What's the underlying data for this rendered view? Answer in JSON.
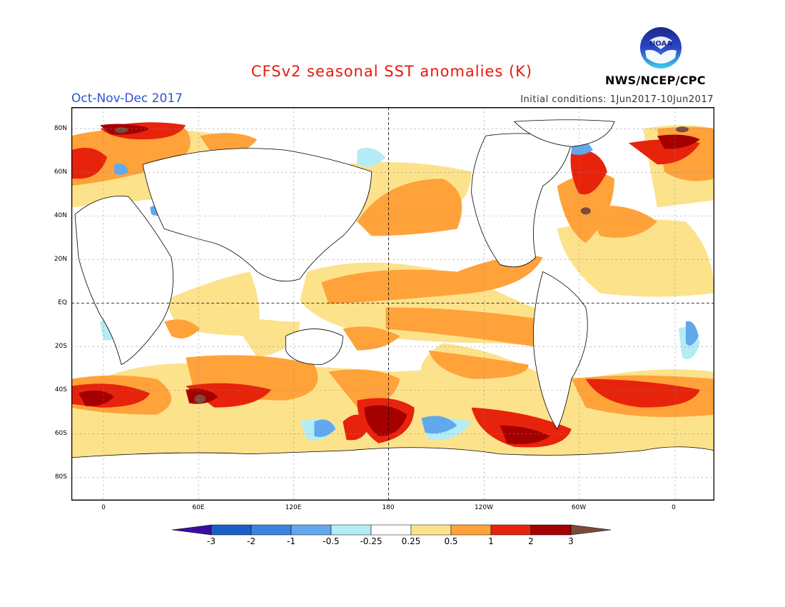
{
  "title": "CFSv2 seasonal SST anomalies (K)",
  "period": "Oct-Nov-Dec 2017",
  "initial_conditions": "Initial conditions: 1Jun2017-10Jun2017",
  "agency": "NWS/NCEP/CPC",
  "logo_text": "NOAA",
  "lat_labels": [
    "80N",
    "60N",
    "40N",
    "20N",
    "EQ",
    "20S",
    "40S",
    "60S",
    "80S"
  ],
  "lon_labels": [
    "0",
    "60E",
    "120E",
    "180",
    "120W",
    "60W",
    "0"
  ],
  "colorbar": {
    "labels": [
      "-3",
      "-2",
      "-1",
      "-0.5",
      "-0.25",
      "0.25",
      "0.5",
      "1",
      "2",
      "3"
    ],
    "colors": [
      "#3a0fa0",
      "#1d5fc8",
      "#3c82e0",
      "#62a8ec",
      "#b4ecf5",
      "#ffffff",
      "#fde28c",
      "#ffa23a",
      "#e8230b",
      "#a50000",
      "#7a4a3a"
    ]
  }
}
